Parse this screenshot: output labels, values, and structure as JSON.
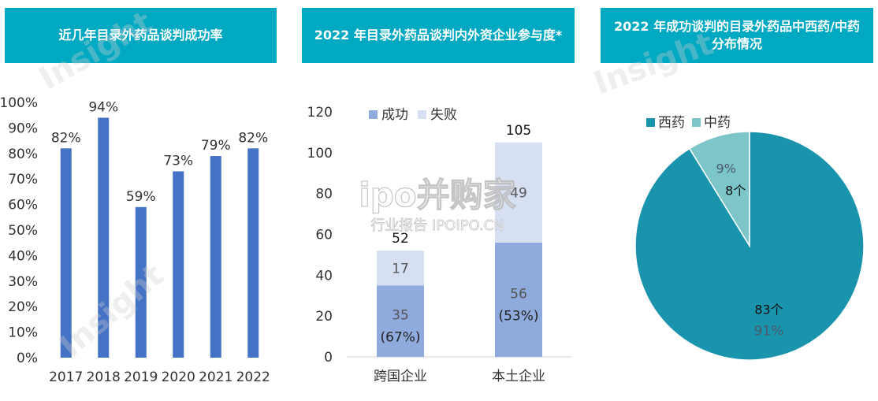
{
  "colors": {
    "header_bg": "#00A9C2",
    "bar_blue": "#4472C4",
    "success": "#8FAADC",
    "failure": "#D6E0F2",
    "western": "#1A93AC",
    "tcm": "#7CC5C9",
    "axis_text": "#333333"
  },
  "chart_data": [
    {
      "type": "bar",
      "title": "近几年目录外药品谈判成功率",
      "categories": [
        "2017",
        "2018",
        "2019",
        "2020",
        "2021",
        "2022"
      ],
      "values": [
        82,
        94,
        59,
        73,
        79,
        82
      ],
      "data_labels": [
        "82%",
        "94%",
        "59%",
        "73%",
        "79%",
        "82%"
      ],
      "ylim": [
        0,
        100
      ],
      "y_ticks": [
        "0%",
        "10%",
        "20%",
        "30%",
        "40%",
        "50%",
        "60%",
        "70%",
        "80%",
        "90%",
        "100%"
      ],
      "grid": false
    },
    {
      "type": "bar",
      "stacked": true,
      "title": "2022 年目录外药品谈判内外资企业参与度*",
      "categories": [
        "跨国企业",
        "本土企业"
      ],
      "series": [
        {
          "name": "成功",
          "values": [
            35,
            56
          ]
        },
        {
          "name": "失败",
          "values": [
            17,
            49
          ]
        }
      ],
      "totals": [
        52,
        105
      ],
      "success_pct_labels": [
        "(67%)",
        "(53%)"
      ],
      "ylim": [
        0,
        120
      ],
      "y_ticks": [
        "0",
        "20",
        "40",
        "60",
        "80",
        "100",
        "120"
      ],
      "legend_position": "top-left",
      "grid": false
    },
    {
      "type": "pie",
      "title": "2022 年成功谈判的目录外药品中西药/中药分布情况",
      "slices": [
        {
          "name": "西药",
          "value": 83,
          "count_label": "83个",
          "pct_label": "91%"
        },
        {
          "name": "中药",
          "value": 8,
          "count_label": "8个",
          "pct_label": "9%"
        }
      ],
      "legend_position": "top-left"
    }
  ],
  "watermark": {
    "brand": "Insight",
    "site_line1": "ipo并购家",
    "site_line2": "行业报告 IPOIPO.CN"
  }
}
